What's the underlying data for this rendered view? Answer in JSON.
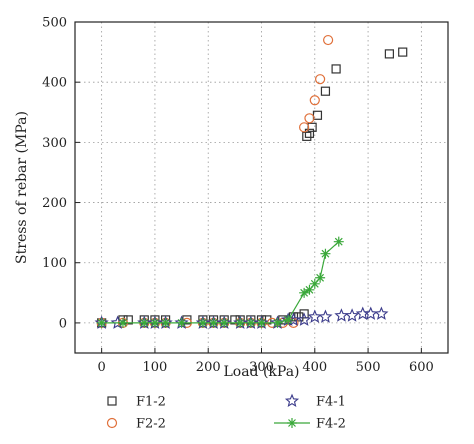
{
  "chart_data": {
    "type": "scatter",
    "xlabel": "Load (kPa)",
    "ylabel": "Stress of rebar (MPa)",
    "xlim": [
      -50,
      650
    ],
    "ylim": [
      -50,
      500
    ],
    "xticks": [
      0,
      100,
      200,
      300,
      400,
      500,
      600
    ],
    "yticks": [
      0,
      100,
      200,
      300,
      400,
      500
    ],
    "grid": "dotted",
    "legend_placement": "bottom",
    "series": [
      {
        "name": "F1-2",
        "marker": "square",
        "color": "#333333",
        "line": false,
        "points": [
          [
            0,
            0
          ],
          [
            40,
            5
          ],
          [
            50,
            5
          ],
          [
            80,
            5
          ],
          [
            100,
            5
          ],
          [
            120,
            5
          ],
          [
            160,
            5
          ],
          [
            190,
            5
          ],
          [
            210,
            5
          ],
          [
            230,
            5
          ],
          [
            250,
            5
          ],
          [
            260,
            5
          ],
          [
            280,
            5
          ],
          [
            300,
            5
          ],
          [
            310,
            5
          ],
          [
            340,
            5
          ],
          [
            360,
            10
          ],
          [
            370,
            10
          ],
          [
            380,
            15
          ],
          [
            385,
            310
          ],
          [
            390,
            315
          ],
          [
            395,
            325
          ],
          [
            405,
            345
          ],
          [
            420,
            385
          ],
          [
            440,
            422
          ],
          [
            540,
            447
          ],
          [
            565,
            450
          ]
        ]
      },
      {
        "name": "F2-2",
        "marker": "circle",
        "color": "#e0703a",
        "line": false,
        "points": [
          [
            0,
            0
          ],
          [
            40,
            0
          ],
          [
            80,
            0
          ],
          [
            100,
            0
          ],
          [
            120,
            0
          ],
          [
            160,
            0
          ],
          [
            190,
            0
          ],
          [
            210,
            0
          ],
          [
            230,
            0
          ],
          [
            260,
            0
          ],
          [
            280,
            0
          ],
          [
            300,
            0
          ],
          [
            320,
            0
          ],
          [
            340,
            0
          ],
          [
            360,
            0
          ],
          [
            380,
            325
          ],
          [
            390,
            340
          ],
          [
            400,
            370
          ],
          [
            410,
            405
          ],
          [
            425,
            470
          ]
        ]
      },
      {
        "name": "F4-1",
        "marker": "star",
        "color": "#3a3a8a",
        "line": false,
        "points": [
          [
            0,
            0
          ],
          [
            30,
            0
          ],
          [
            80,
            0
          ],
          [
            100,
            0
          ],
          [
            120,
            0
          ],
          [
            150,
            0
          ],
          [
            190,
            0
          ],
          [
            210,
            0
          ],
          [
            230,
            0
          ],
          [
            260,
            0
          ],
          [
            280,
            0
          ],
          [
            300,
            0
          ],
          [
            330,
            0
          ],
          [
            350,
            5
          ],
          [
            360,
            5
          ],
          [
            380,
            5
          ],
          [
            400,
            10
          ],
          [
            420,
            10
          ],
          [
            450,
            12
          ],
          [
            470,
            12
          ],
          [
            490,
            15
          ],
          [
            505,
            15
          ],
          [
            525,
            15
          ]
        ]
      },
      {
        "name": "F4-2",
        "marker": "asterisk",
        "color": "#3aa83a",
        "line": true,
        "points": [
          [
            0,
            0
          ],
          [
            40,
            0
          ],
          [
            80,
            0
          ],
          [
            100,
            0
          ],
          [
            120,
            0
          ],
          [
            150,
            0
          ],
          [
            190,
            0
          ],
          [
            210,
            0
          ],
          [
            230,
            0
          ],
          [
            260,
            0
          ],
          [
            280,
            0
          ],
          [
            300,
            0
          ],
          [
            330,
            0
          ],
          [
            350,
            5
          ],
          [
            380,
            50
          ],
          [
            390,
            55
          ],
          [
            400,
            65
          ],
          [
            410,
            75
          ],
          [
            420,
            115
          ],
          [
            445,
            135
          ]
        ]
      }
    ]
  }
}
